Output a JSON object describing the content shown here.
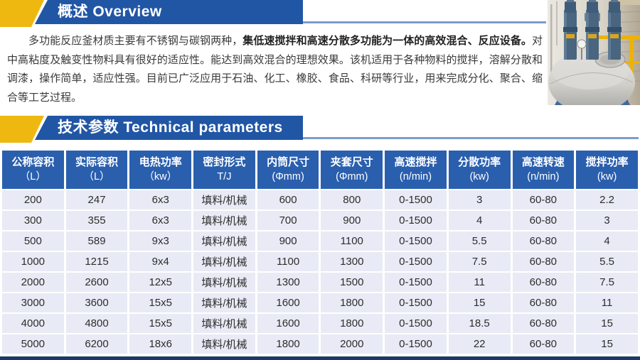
{
  "banners": {
    "overview": "概述 Overview",
    "technical": "技术参数 Technical parameters"
  },
  "overview": {
    "segments": [
      {
        "text": "多功能反应釜材质主要有不锈钢与碳钢两种，",
        "bold": false
      },
      {
        "text": "集低速搅拌和高速分散多功能为一体的高效混合、反应设备。",
        "bold": true
      },
      {
        "text": "对中高粘度及触变性物料具有很好的适应性。能达到高效混合的理想效果。该机适用于各种物料的搅拌，溶解分散和调漆，操作简单，适应性强。目前已广泛应用于石油、化工、橡胶、食品、科研等行业，用来完成分化、聚合、缩合等工艺过程。",
        "bold": false
      }
    ]
  },
  "table": {
    "headers": [
      {
        "line1": "公称容积",
        "line2": "（L）"
      },
      {
        "line1": "实际容积",
        "line2": "（L）"
      },
      {
        "line1": "电热功率",
        "line2": "（kw）"
      },
      {
        "line1": "密封形式",
        "line2": "T/J"
      },
      {
        "line1": "内筒尺寸",
        "line2": "(Φmm)"
      },
      {
        "line1": "夹套尺寸",
        "line2": "(Φmm)"
      },
      {
        "line1": "高速搅拌",
        "line2": "(n/min)"
      },
      {
        "line1": "分散功率",
        "line2": "(kw)"
      },
      {
        "line1": "高速转速",
        "line2": "(n/min)"
      },
      {
        "line1": "搅拌功率",
        "line2": "(kw)"
      }
    ],
    "rows": [
      [
        "200",
        "247",
        "6x3",
        "填料/机械",
        "600",
        "800",
        "0-1500",
        "3",
        "60-80",
        "2.2"
      ],
      [
        "300",
        "355",
        "6x3",
        "填料/机械",
        "700",
        "900",
        "0-1500",
        "4",
        "60-80",
        "3"
      ],
      [
        "500",
        "589",
        "9x3",
        "填料/机械",
        "900",
        "1100",
        "0-1500",
        "5.5",
        "60-80",
        "4"
      ],
      [
        "1000",
        "1215",
        "9x4",
        "填料/机械",
        "1100",
        "1300",
        "0-1500",
        "7.5",
        "60-80",
        "5.5"
      ],
      [
        "2000",
        "2600",
        "12x5",
        "填料/机械",
        "1300",
        "1500",
        "0-1500",
        "11",
        "60-80",
        "7.5"
      ],
      [
        "3000",
        "3600",
        "15x5",
        "填料/机械",
        "1600",
        "1800",
        "0-1500",
        "15",
        "60-80",
        "11"
      ],
      [
        "4000",
        "4800",
        "15x5",
        "填料/机械",
        "1600",
        "1800",
        "0-1500",
        "18.5",
        "60-80",
        "15"
      ],
      [
        "5000",
        "6200",
        "18x6",
        "填料/机械",
        "1800",
        "2000",
        "0-1500",
        "22",
        "60-80",
        "15"
      ]
    ]
  },
  "colors": {
    "banner_blue": "#2156A5",
    "banner_yellow": "#EFB810",
    "rule_blue": "#7D9BCD",
    "table_header_blue": "#2A5FAE",
    "row_bg": "#E8EBF5",
    "bottom_bar": "#1B3867"
  }
}
